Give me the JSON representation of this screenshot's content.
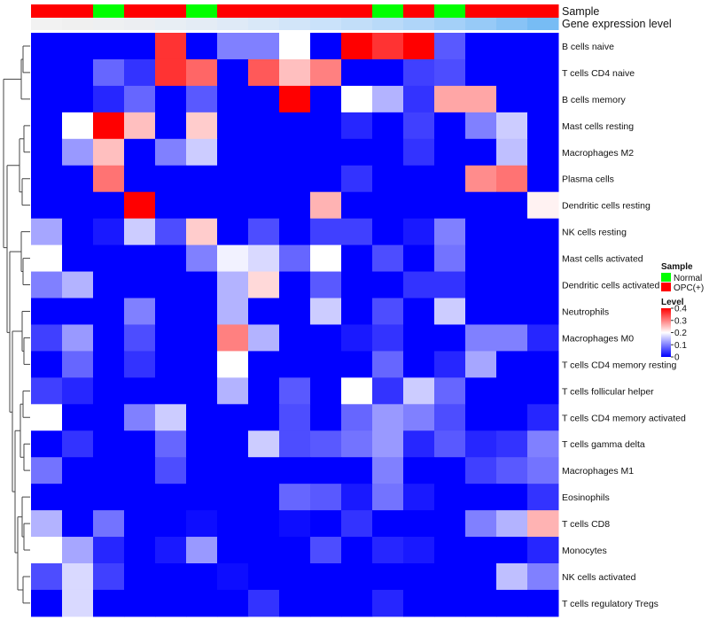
{
  "chart_data": {
    "type": "heatmap",
    "annotation_rows": [
      "Sample",
      "Gene expression level"
    ],
    "sample_groups": [
      "OPC(+)",
      "OPC(+)",
      "Normal",
      "OPC(+)",
      "OPC(+)",
      "Normal",
      "OPC(+)",
      "OPC(+)",
      "OPC(+)",
      "OPC(+)",
      "OPC(+)",
      "Normal",
      "OPC(+)",
      "Normal",
      "OPC(+)",
      "OPC(+)",
      "OPC(+)"
    ],
    "expression_level_colors": [
      "#f2f2f2",
      "#f0f0f0",
      "#eef0f2",
      "#eceef2",
      "#e8eef4",
      "#e4ecf5",
      "#dfeaf7",
      "#d9e8f8",
      "#d2e5f9",
      "#cae2fa",
      "#c2def9",
      "#b9daf9",
      "#afd5f9",
      "#a4d0f8",
      "#97caf7",
      "#88c3f6",
      "#77bcf4"
    ],
    "rows": [
      "B cells naive",
      "T cells CD4 naive",
      "B cells memory",
      "Mast cells resting",
      "Macrophages M2",
      "Plasma cells",
      "Dendritic cells resting",
      "NK cells resting",
      "Mast cells activated",
      "Dendritic cells activated",
      "Neutrophils",
      "Macrophages M0",
      "T cells CD4 memory resting",
      "T cells follicular helper",
      "T cells CD4 memory activated",
      "T cells gamma delta",
      "Macrophages M1",
      "Eosinophils",
      "T cells CD8",
      "Monocytes",
      "NK cells activated",
      "T cells regulatory  Tregs"
    ],
    "values": [
      [
        0,
        0,
        0,
        0,
        0.36,
        0,
        0.1,
        0.1,
        0.2,
        0,
        0.4,
        0.36,
        0.4,
        0.07,
        0,
        0,
        0
      ],
      [
        0,
        0,
        0.08,
        0.04,
        0.36,
        0.32,
        0,
        0.33,
        0.25,
        0.3,
        0,
        0,
        0.05,
        0.06,
        0,
        0,
        0
      ],
      [
        0,
        0,
        0.03,
        0.08,
        0,
        0.07,
        0,
        0,
        0.4,
        0,
        0.2,
        0.14,
        0.04,
        0.27,
        0.27,
        0,
        0
      ],
      [
        0,
        0.2,
        0.4,
        0.25,
        0,
        0.24,
        0,
        0,
        0,
        0,
        0.03,
        0,
        0.05,
        0,
        0.1,
        0.16,
        0
      ],
      [
        0,
        0.12,
        0.25,
        0,
        0.1,
        0.16,
        0,
        0,
        0,
        0,
        0,
        0,
        0.04,
        0,
        0,
        0.15,
        0
      ],
      [
        0,
        0,
        0.31,
        0,
        0,
        0,
        0,
        0,
        0,
        0,
        0.04,
        0,
        0,
        0,
        0.29,
        0.31,
        0
      ],
      [
        0,
        0,
        0,
        0.4,
        0,
        0,
        0,
        0,
        0,
        0.26,
        0,
        0,
        0,
        0,
        0,
        0,
        0.21
      ],
      [
        0.13,
        0,
        0.02,
        0.16,
        0.06,
        0.24,
        0,
        0.06,
        0,
        0.05,
        0.05,
        0,
        0.02,
        0.1,
        0,
        0,
        0
      ],
      [
        0.2,
        0,
        0,
        0,
        0,
        0.1,
        0.19,
        0.17,
        0.08,
        0.2,
        0,
        0.06,
        0,
        0.09,
        0,
        0,
        0
      ],
      [
        0.1,
        0.14,
        0,
        0,
        0,
        0,
        0.14,
        0.23,
        0,
        0.07,
        0,
        0,
        0.04,
        0.04,
        0,
        0,
        0
      ],
      [
        0,
        0,
        0,
        0.1,
        0,
        0,
        0.14,
        0,
        0,
        0.16,
        0,
        0.06,
        0,
        0.16,
        0,
        0,
        0
      ],
      [
        0.05,
        0.12,
        0,
        0.06,
        0,
        0,
        0.3,
        0.14,
        0,
        0,
        0.02,
        0.04,
        0,
        0,
        0.1,
        0.1,
        0.03
      ],
      [
        0,
        0.08,
        0,
        0.04,
        0,
        0,
        0.2,
        0,
        0,
        0,
        0,
        0.08,
        0,
        0.03,
        0.13,
        0,
        0
      ],
      [
        0.05,
        0.03,
        0,
        0,
        0,
        0,
        0.14,
        0,
        0.07,
        0,
        0.2,
        0.04,
        0.16,
        0.08,
        0,
        0,
        0
      ],
      [
        0.2,
        0,
        0,
        0.1,
        0.16,
        0,
        0,
        0,
        0.06,
        0,
        0.08,
        0.12,
        0.1,
        0.06,
        0,
        0,
        0.03
      ],
      [
        0,
        0.04,
        0,
        0,
        0.08,
        0,
        0,
        0.16,
        0.06,
        0.07,
        0.09,
        0.12,
        0.03,
        0.07,
        0.03,
        0.04,
        0.1
      ],
      [
        0.09,
        0,
        0,
        0,
        0.06,
        0,
        0,
        0,
        0,
        0,
        0,
        0.1,
        0,
        0,
        0.05,
        0.07,
        0.09
      ],
      [
        0,
        0,
        0,
        0,
        0,
        0,
        0,
        0,
        0.08,
        0.07,
        0.02,
        0.09,
        0.02,
        0,
        0,
        0,
        0.04
      ],
      [
        0.14,
        0,
        0.09,
        0,
        0,
        0.01,
        0,
        0,
        0.01,
        0,
        0.04,
        0,
        0,
        0,
        0.1,
        0.14,
        0.26
      ],
      [
        0.2,
        0.13,
        0.03,
        0,
        0.02,
        0.12,
        0,
        0,
        0,
        0.06,
        0,
        0.03,
        0.02,
        0,
        0,
        0,
        0.03
      ],
      [
        0.06,
        0.17,
        0.05,
        0,
        0,
        0,
        0.01,
        0,
        0,
        0,
        0,
        0,
        0,
        0,
        0,
        0.15,
        0.1
      ],
      [
        0,
        0.17,
        0,
        0,
        0,
        0,
        0,
        0.04,
        0,
        0,
        0,
        0.03,
        0,
        0,
        0,
        0,
        0
      ]
    ],
    "legend": {
      "sample_title": "Sample",
      "sample_items": [
        {
          "label": "Normal",
          "color": "#00ff00"
        },
        {
          "label": "OPC(+)",
          "color": "#ff0000"
        }
      ],
      "level_title": "Level",
      "level_ticks": [
        "0.4",
        "0.3",
        "0.2",
        "0.1",
        "0"
      ],
      "level_range": [
        0,
        0.4
      ]
    },
    "colors": {
      "low": "#0000ff",
      "mid": "#ffffff",
      "high": "#ff0000",
      "normal": "#00ff00",
      "opc": "#ff0000"
    },
    "dendrogram": "row clustering shown at left",
    "grid": false
  }
}
